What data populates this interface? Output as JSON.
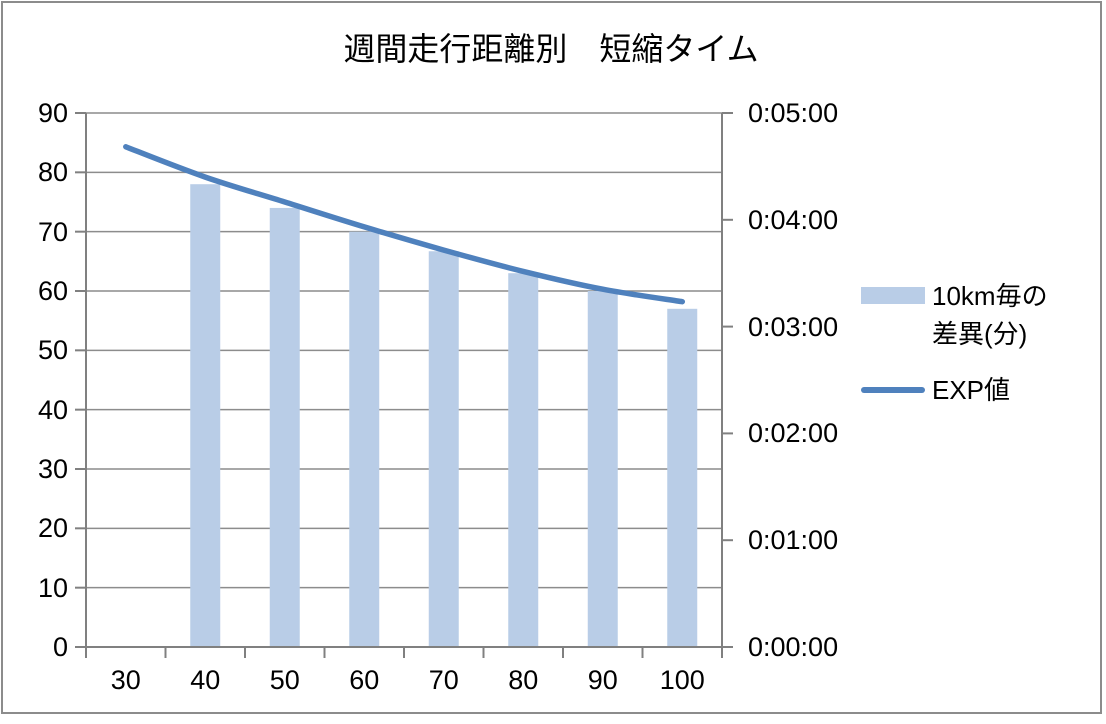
{
  "window": {
    "background": "#FFFFFF",
    "border_color": "#8C8C8C"
  },
  "chart_data": {
    "type": "combo",
    "title": "週間走行距離別　短縮タイム",
    "categories": [
      "30",
      "40",
      "50",
      "60",
      "70",
      "80",
      "90",
      "100"
    ],
    "series": [
      {
        "name": "10km毎の差異(分)",
        "chart_type": "bar",
        "axis": "left",
        "color": "#B9CDE7",
        "values": [
          null,
          78,
          74,
          70,
          66.7,
          63,
          60,
          57
        ]
      },
      {
        "name": "EXP値",
        "chart_type": "line",
        "axis": "right",
        "color": "#4F81BD",
        "smooth": true,
        "values_hms": [
          "0:04:41",
          "0:04:24",
          "0:04:10",
          "0:03:56",
          "0:03:43",
          "0:03:31",
          "0:03:21",
          "0:03:14"
        ],
        "values_seconds": [
          281,
          264,
          250,
          236,
          223,
          211,
          201,
          194
        ]
      }
    ],
    "left_axis": {
      "min": 0,
      "max": 90,
      "step": 10,
      "tick_labels": [
        "0",
        "10",
        "20",
        "30",
        "40",
        "50",
        "60",
        "70",
        "80",
        "90"
      ]
    },
    "right_axis": {
      "min_seconds": 0,
      "max_seconds": 300,
      "step_seconds": 60,
      "tick_labels": [
        "0:00:00",
        "0:01:00",
        "0:02:00",
        "0:03:00",
        "0:04:00",
        "0:05:00"
      ]
    },
    "x_axis": {
      "tick_labels": [
        "30",
        "40",
        "50",
        "60",
        "70",
        "80",
        "90",
        "100"
      ]
    },
    "legend": {
      "position": "right",
      "bar_label": "10km毎の差異(分)",
      "bar_label_line1": "10km毎の",
      "bar_label_line2": "差異(分)",
      "line_label": "EXP値"
    },
    "grid": {
      "horizontal": true,
      "vertical": false,
      "color": "#8C8C8C"
    },
    "axis_color": "#808080",
    "text_color": "#000000"
  }
}
